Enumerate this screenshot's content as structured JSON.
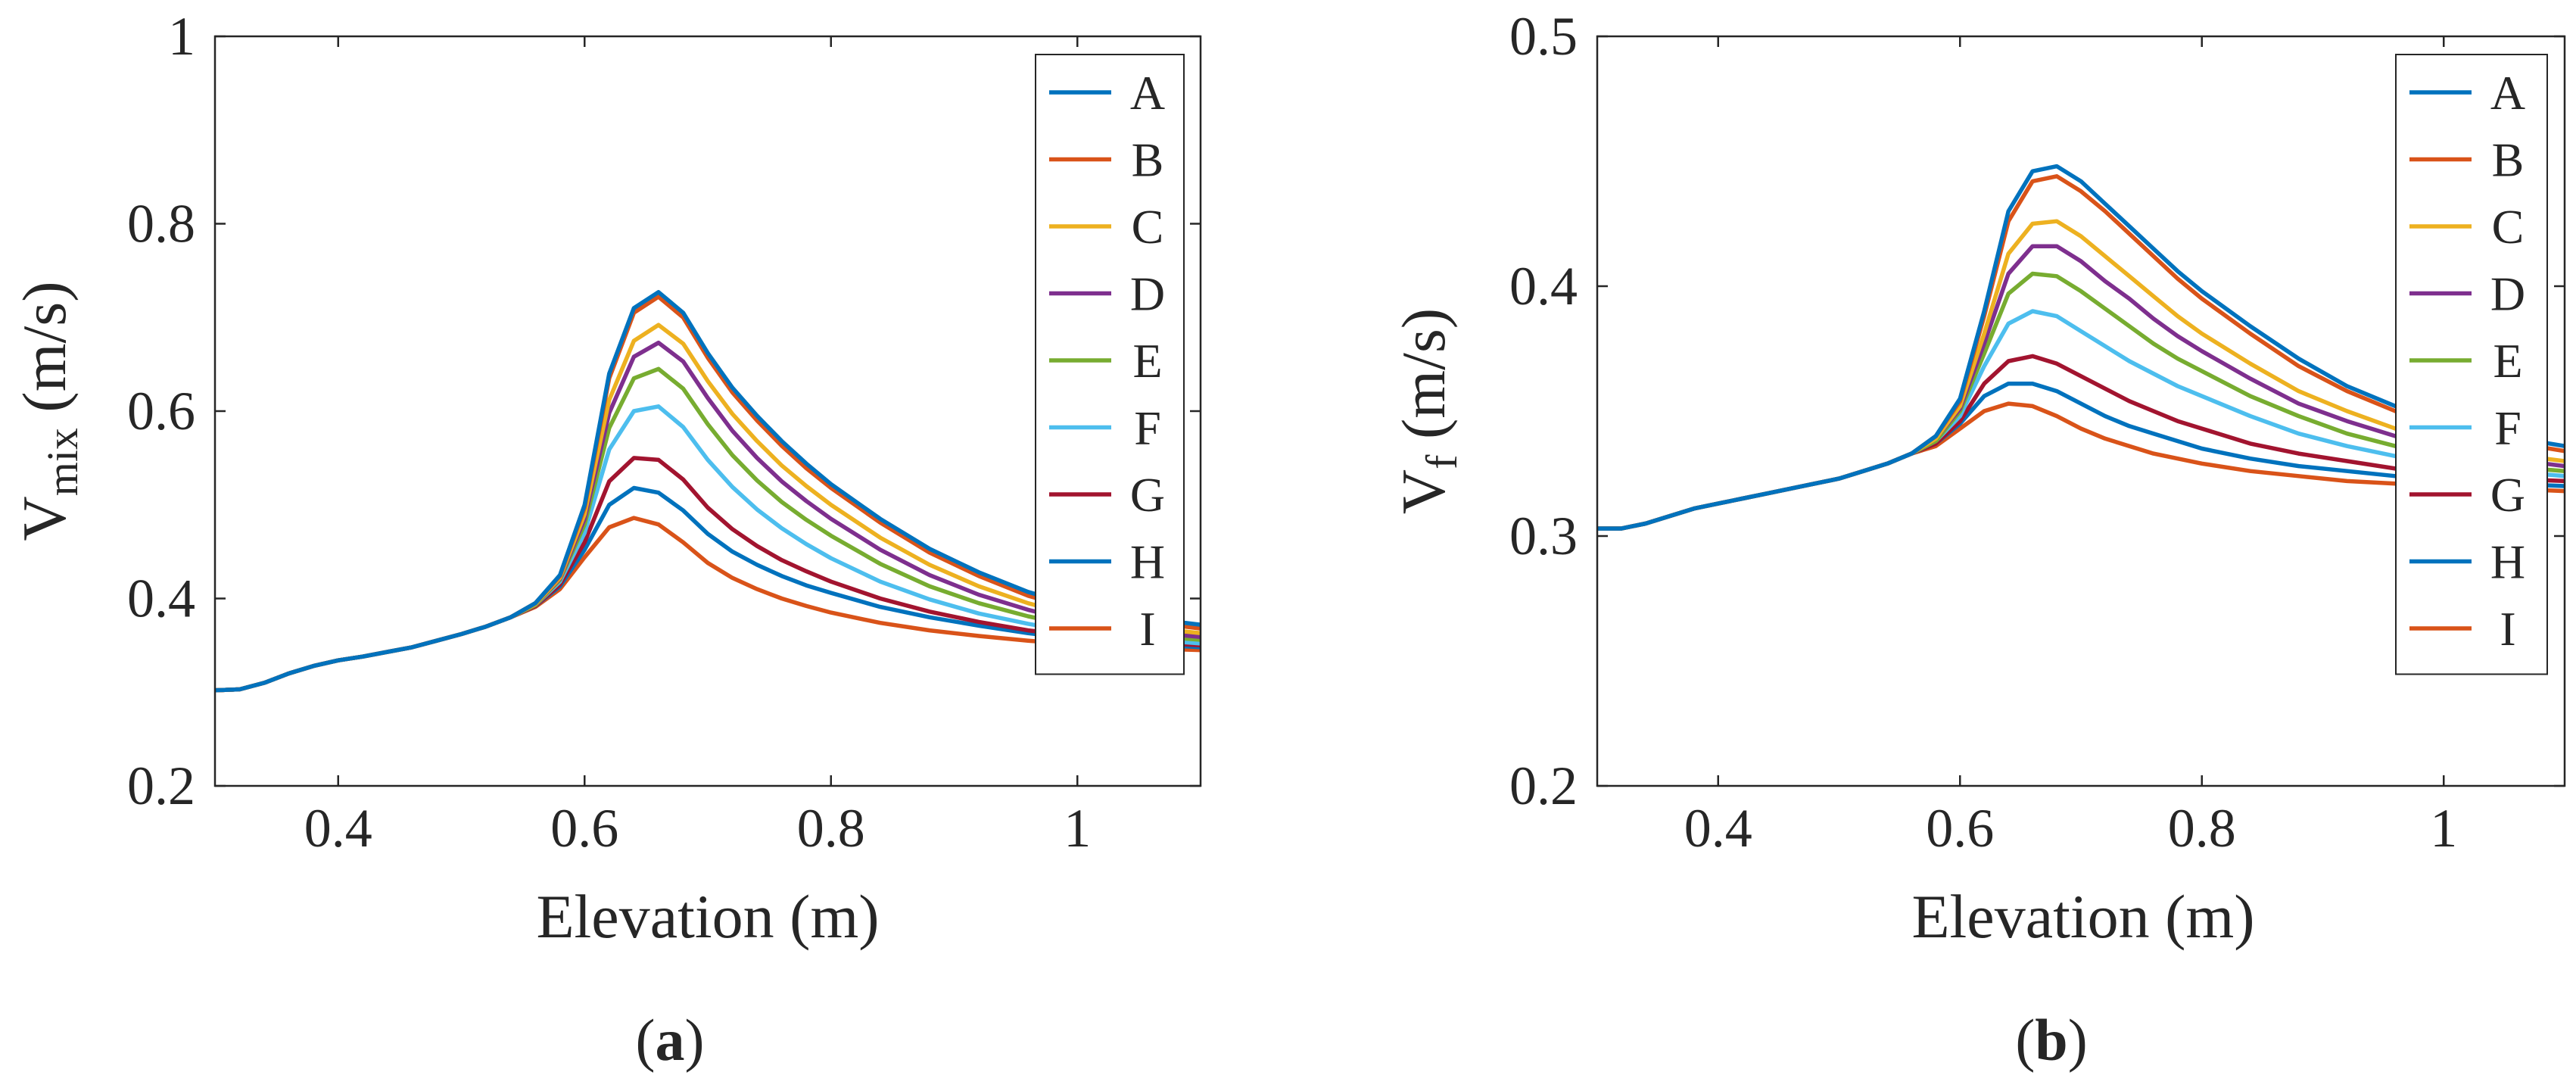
{
  "figure": {
    "panels": [
      {
        "label_open": "(",
        "label_letter": "a",
        "label_close": ")"
      },
      {
        "label_open": "(",
        "label_letter": "b",
        "label_close": ")"
      }
    ]
  },
  "chart_data": [
    {
      "type": "line",
      "panel": "a",
      "title": "",
      "xlabel": "Elevation (m)",
      "ylabel_main": "V",
      "ylabel_sub": "mix",
      "ylabel_unit": " (m/s)",
      "xlim": [
        0.3,
        1.1
      ],
      "ylim": [
        0.2,
        1.0
      ],
      "xticks": [
        0.4,
        0.6,
        0.8,
        1.0
      ],
      "xtick_labels": [
        "0.4",
        "0.6",
        "0.8",
        "1"
      ],
      "yticks": [
        0.2,
        0.4,
        0.6,
        0.8,
        1.0
      ],
      "ytick_labels": [
        "0.2",
        "0.4",
        "0.6",
        "0.8",
        "1"
      ],
      "legend_position": "top-right",
      "grid": false,
      "x": [
        0.3,
        0.32,
        0.34,
        0.36,
        0.38,
        0.4,
        0.42,
        0.44,
        0.46,
        0.48,
        0.5,
        0.52,
        0.54,
        0.56,
        0.58,
        0.6,
        0.62,
        0.64,
        0.66,
        0.68,
        0.7,
        0.72,
        0.74,
        0.76,
        0.78,
        0.8,
        0.84,
        0.88,
        0.92,
        0.96,
        1.0,
        1.05,
        1.1
      ],
      "series": [
        {
          "name": "A",
          "color": "#0072BD",
          "values": [
            0.302,
            0.303,
            0.31,
            0.32,
            0.328,
            0.334,
            0.338,
            0.343,
            0.348,
            0.355,
            0.362,
            0.37,
            0.38,
            0.395,
            0.425,
            0.5,
            0.64,
            0.71,
            0.727,
            0.705,
            0.662,
            0.625,
            0.595,
            0.568,
            0.544,
            0.522,
            0.485,
            0.453,
            0.428,
            0.407,
            0.392,
            0.38,
            0.372
          ]
        },
        {
          "name": "B",
          "color": "#D95319",
          "values": [
            0.302,
            0.303,
            0.31,
            0.32,
            0.328,
            0.334,
            0.338,
            0.343,
            0.348,
            0.355,
            0.362,
            0.37,
            0.38,
            0.395,
            0.424,
            0.497,
            0.635,
            0.705,
            0.722,
            0.7,
            0.657,
            0.62,
            0.59,
            0.563,
            0.539,
            0.518,
            0.481,
            0.449,
            0.424,
            0.403,
            0.388,
            0.376,
            0.368
          ]
        },
        {
          "name": "C",
          "color": "#EDB120",
          "values": [
            0.302,
            0.303,
            0.31,
            0.32,
            0.328,
            0.334,
            0.338,
            0.343,
            0.348,
            0.355,
            0.362,
            0.37,
            0.38,
            0.394,
            0.422,
            0.49,
            0.612,
            0.675,
            0.692,
            0.672,
            0.632,
            0.597,
            0.568,
            0.542,
            0.52,
            0.5,
            0.465,
            0.436,
            0.413,
            0.395,
            0.381,
            0.37,
            0.363
          ]
        },
        {
          "name": "D",
          "color": "#7E2F8E",
          "values": [
            0.302,
            0.303,
            0.31,
            0.32,
            0.328,
            0.334,
            0.338,
            0.343,
            0.348,
            0.355,
            0.362,
            0.37,
            0.38,
            0.394,
            0.421,
            0.485,
            0.598,
            0.658,
            0.673,
            0.653,
            0.614,
            0.579,
            0.55,
            0.525,
            0.504,
            0.485,
            0.452,
            0.425,
            0.404,
            0.388,
            0.375,
            0.365,
            0.359
          ]
        },
        {
          "name": "E",
          "color": "#77AC30",
          "values": [
            0.302,
            0.303,
            0.31,
            0.32,
            0.328,
            0.334,
            0.338,
            0.343,
            0.348,
            0.355,
            0.362,
            0.37,
            0.38,
            0.393,
            0.42,
            0.479,
            0.582,
            0.635,
            0.645,
            0.624,
            0.586,
            0.553,
            0.526,
            0.503,
            0.484,
            0.467,
            0.437,
            0.413,
            0.395,
            0.381,
            0.37,
            0.361,
            0.356
          ]
        },
        {
          "name": "F",
          "color": "#4DBEEE",
          "values": [
            0.302,
            0.303,
            0.31,
            0.32,
            0.328,
            0.334,
            0.338,
            0.343,
            0.348,
            0.355,
            0.362,
            0.37,
            0.38,
            0.393,
            0.418,
            0.47,
            0.559,
            0.6,
            0.605,
            0.583,
            0.548,
            0.519,
            0.495,
            0.475,
            0.458,
            0.443,
            0.418,
            0.399,
            0.384,
            0.373,
            0.364,
            0.357,
            0.352
          ]
        },
        {
          "name": "G",
          "color": "#A2142F",
          "values": [
            0.302,
            0.303,
            0.31,
            0.32,
            0.328,
            0.334,
            0.338,
            0.343,
            0.348,
            0.355,
            0.362,
            0.37,
            0.38,
            0.392,
            0.415,
            0.46,
            0.525,
            0.55,
            0.548,
            0.527,
            0.497,
            0.474,
            0.456,
            0.441,
            0.429,
            0.418,
            0.4,
            0.386,
            0.375,
            0.366,
            0.36,
            0.354,
            0.35
          ]
        },
        {
          "name": "H",
          "color": "#0072BD",
          "values": [
            0.302,
            0.303,
            0.31,
            0.32,
            0.328,
            0.334,
            0.338,
            0.343,
            0.348,
            0.355,
            0.362,
            0.37,
            0.38,
            0.392,
            0.413,
            0.452,
            0.5,
            0.518,
            0.513,
            0.494,
            0.469,
            0.45,
            0.436,
            0.424,
            0.414,
            0.406,
            0.391,
            0.38,
            0.371,
            0.363,
            0.357,
            0.352,
            0.348
          ]
        },
        {
          "name": "I",
          "color": "#D95319",
          "values": [
            0.302,
            0.303,
            0.31,
            0.32,
            0.328,
            0.334,
            0.338,
            0.343,
            0.348,
            0.355,
            0.362,
            0.37,
            0.38,
            0.391,
            0.41,
            0.444,
            0.476,
            0.486,
            0.479,
            0.46,
            0.438,
            0.422,
            0.41,
            0.4,
            0.392,
            0.385,
            0.374,
            0.366,
            0.36,
            0.355,
            0.351,
            0.347,
            0.345
          ]
        }
      ],
      "legend": [
        "A",
        "B",
        "C",
        "D",
        "E",
        "F",
        "G",
        "H",
        "I"
      ]
    },
    {
      "type": "line",
      "panel": "b",
      "title": "",
      "xlabel": "Elevation (m)",
      "ylabel_main": "V",
      "ylabel_sub": "f",
      "ylabel_unit": " (m/s)",
      "xlim": [
        0.3,
        1.1
      ],
      "ylim": [
        0.2,
        0.5
      ],
      "xticks": [
        0.4,
        0.6,
        0.8,
        1.0
      ],
      "xtick_labels": [
        "0.4",
        "0.6",
        "0.8",
        "1"
      ],
      "yticks": [
        0.2,
        0.3,
        0.4,
        0.5
      ],
      "ytick_labels": [
        "0.2",
        "0.3",
        "0.4",
        "0.5"
      ],
      "legend_position": "top-right",
      "grid": false,
      "x": [
        0.3,
        0.32,
        0.34,
        0.36,
        0.38,
        0.4,
        0.42,
        0.44,
        0.46,
        0.48,
        0.5,
        0.52,
        0.54,
        0.56,
        0.58,
        0.6,
        0.62,
        0.64,
        0.66,
        0.68,
        0.7,
        0.72,
        0.74,
        0.76,
        0.78,
        0.8,
        0.84,
        0.88,
        0.92,
        0.96,
        1.0,
        1.05,
        1.1
      ],
      "series": [
        {
          "name": "A",
          "color": "#0072BD",
          "values": [
            0.303,
            0.303,
            0.305,
            0.308,
            0.311,
            0.313,
            0.315,
            0.317,
            0.319,
            0.321,
            0.323,
            0.326,
            0.329,
            0.333,
            0.34,
            0.355,
            0.39,
            0.43,
            0.446,
            0.448,
            0.442,
            0.433,
            0.424,
            0.415,
            0.406,
            0.398,
            0.384,
            0.371,
            0.36,
            0.352,
            0.346,
            0.34,
            0.336
          ]
        },
        {
          "name": "B",
          "color": "#D95319",
          "values": [
            0.303,
            0.303,
            0.305,
            0.308,
            0.311,
            0.313,
            0.315,
            0.317,
            0.319,
            0.321,
            0.323,
            0.326,
            0.329,
            0.333,
            0.34,
            0.354,
            0.388,
            0.426,
            0.442,
            0.444,
            0.438,
            0.43,
            0.421,
            0.412,
            0.403,
            0.395,
            0.381,
            0.368,
            0.358,
            0.35,
            0.344,
            0.338,
            0.334
          ]
        },
        {
          "name": "C",
          "color": "#EDB120",
          "values": [
            0.303,
            0.303,
            0.305,
            0.308,
            0.311,
            0.313,
            0.315,
            0.317,
            0.319,
            0.321,
            0.323,
            0.326,
            0.329,
            0.333,
            0.339,
            0.352,
            0.381,
            0.413,
            0.425,
            0.426,
            0.42,
            0.412,
            0.404,
            0.396,
            0.388,
            0.381,
            0.369,
            0.358,
            0.35,
            0.343,
            0.338,
            0.333,
            0.33
          ]
        },
        {
          "name": "D",
          "color": "#7E2F8E",
          "values": [
            0.303,
            0.303,
            0.305,
            0.308,
            0.311,
            0.313,
            0.315,
            0.317,
            0.319,
            0.321,
            0.323,
            0.326,
            0.329,
            0.333,
            0.339,
            0.351,
            0.377,
            0.405,
            0.416,
            0.416,
            0.41,
            0.402,
            0.395,
            0.387,
            0.38,
            0.374,
            0.363,
            0.353,
            0.346,
            0.34,
            0.335,
            0.331,
            0.328
          ]
        },
        {
          "name": "E",
          "color": "#77AC30",
          "values": [
            0.303,
            0.303,
            0.305,
            0.308,
            0.311,
            0.313,
            0.315,
            0.317,
            0.319,
            0.321,
            0.323,
            0.326,
            0.329,
            0.333,
            0.338,
            0.35,
            0.373,
            0.397,
            0.405,
            0.404,
            0.398,
            0.391,
            0.384,
            0.377,
            0.371,
            0.366,
            0.356,
            0.348,
            0.341,
            0.336,
            0.332,
            0.328,
            0.326
          ]
        },
        {
          "name": "F",
          "color": "#4DBEEE",
          "values": [
            0.303,
            0.303,
            0.305,
            0.308,
            0.311,
            0.313,
            0.315,
            0.317,
            0.319,
            0.321,
            0.323,
            0.326,
            0.329,
            0.333,
            0.338,
            0.348,
            0.368,
            0.385,
            0.39,
            0.388,
            0.382,
            0.376,
            0.37,
            0.365,
            0.36,
            0.356,
            0.348,
            0.341,
            0.336,
            0.332,
            0.329,
            0.326,
            0.324
          ]
        },
        {
          "name": "G",
          "color": "#A2142F",
          "values": [
            0.303,
            0.303,
            0.305,
            0.308,
            0.311,
            0.313,
            0.315,
            0.317,
            0.319,
            0.321,
            0.323,
            0.326,
            0.329,
            0.333,
            0.337,
            0.346,
            0.361,
            0.37,
            0.372,
            0.369,
            0.364,
            0.359,
            0.354,
            0.35,
            0.346,
            0.343,
            0.337,
            0.333,
            0.33,
            0.327,
            0.325,
            0.323,
            0.322
          ]
        },
        {
          "name": "H",
          "color": "#0072BD",
          "values": [
            0.303,
            0.303,
            0.305,
            0.308,
            0.311,
            0.313,
            0.315,
            0.317,
            0.319,
            0.321,
            0.323,
            0.326,
            0.329,
            0.333,
            0.337,
            0.345,
            0.356,
            0.361,
            0.361,
            0.358,
            0.353,
            0.348,
            0.344,
            0.341,
            0.338,
            0.335,
            0.331,
            0.328,
            0.326,
            0.324,
            0.323,
            0.321,
            0.32
          ]
        },
        {
          "name": "I",
          "color": "#D95319",
          "values": [
            0.303,
            0.303,
            0.305,
            0.308,
            0.311,
            0.313,
            0.315,
            0.317,
            0.319,
            0.321,
            0.323,
            0.326,
            0.329,
            0.333,
            0.336,
            0.343,
            0.35,
            0.353,
            0.352,
            0.348,
            0.343,
            0.339,
            0.336,
            0.333,
            0.331,
            0.329,
            0.326,
            0.324,
            0.322,
            0.321,
            0.32,
            0.319,
            0.318
          ]
        }
      ],
      "legend": [
        "A",
        "B",
        "C",
        "D",
        "E",
        "F",
        "G",
        "H",
        "I"
      ]
    }
  ]
}
